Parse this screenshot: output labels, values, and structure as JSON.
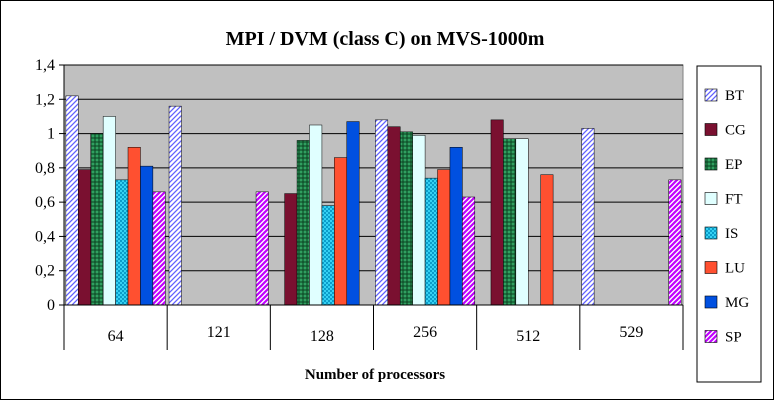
{
  "chart_data": {
    "type": "bar",
    "title": "MPI / DVM (class C) on MVS-1000m",
    "xlabel": "Number of processors",
    "ylabel": "",
    "ylim": [
      0,
      1.4
    ],
    "yticks": [
      0,
      0.2,
      0.4,
      0.6,
      0.8,
      1,
      1.2,
      1.4
    ],
    "ytick_labels": [
      "0",
      "0,2",
      "0,4",
      "0,6",
      "0,8",
      "1",
      "1,2",
      "1,4"
    ],
    "grid": true,
    "legend_position": "right",
    "categories": [
      "64",
      "121",
      "128",
      "256",
      "512",
      "529"
    ],
    "series": [
      {
        "name": "BT",
        "values": [
          1.22,
          1.16,
          null,
          1.08,
          null,
          1.03
        ]
      },
      {
        "name": "CG",
        "values": [
          0.79,
          null,
          0.65,
          1.04,
          1.08,
          null
        ]
      },
      {
        "name": "EP",
        "values": [
          1.0,
          null,
          0.96,
          1.01,
          0.97,
          null
        ]
      },
      {
        "name": "FT",
        "values": [
          1.1,
          null,
          1.05,
          0.99,
          0.97,
          null
        ]
      },
      {
        "name": "IS",
        "values": [
          0.73,
          null,
          0.58,
          0.74,
          null,
          null
        ]
      },
      {
        "name": "LU",
        "values": [
          0.92,
          null,
          0.86,
          0.79,
          0.76,
          null
        ]
      },
      {
        "name": "MG",
        "values": [
          0.81,
          null,
          1.07,
          0.92,
          null,
          null
        ]
      },
      {
        "name": "SP",
        "values": [
          0.66,
          0.66,
          null,
          0.63,
          null,
          0.73
        ]
      }
    ]
  },
  "colors": {
    "plot_background": "#c0c0c0",
    "BT": "#b0b0ff",
    "CG": "#7a1030",
    "EP": "#207040",
    "FT": "#e0ffff",
    "IS": "#20d0ff",
    "LU": "#ff5030",
    "MG": "#0050e0",
    "SP": "#c020ff"
  }
}
